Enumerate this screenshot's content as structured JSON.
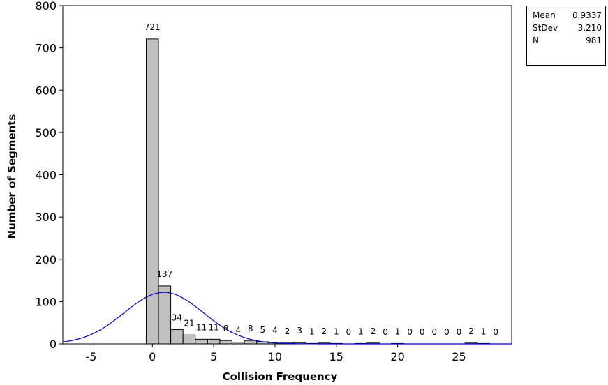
{
  "chart_data": {
    "type": "bar",
    "xlabel": "Collision Frequency",
    "ylabel": "Number of Segments",
    "xlim": [
      -7.3,
      29.3
    ],
    "ylim": [
      0,
      800
    ],
    "x_ticks": [
      -5,
      0,
      5,
      10,
      15,
      20,
      25
    ],
    "y_ticks": [
      0,
      100,
      200,
      300,
      400,
      500,
      600,
      700,
      800
    ],
    "bin_width": 1,
    "bins": [
      0,
      1,
      2,
      3,
      4,
      5,
      6,
      7,
      8,
      9,
      10,
      11,
      12,
      13,
      14,
      15,
      16,
      17,
      18,
      19,
      20,
      21,
      22,
      23,
      24,
      25,
      26,
      27,
      28
    ],
    "values": [
      721,
      137,
      34,
      21,
      11,
      11,
      8,
      4,
      8,
      5,
      4,
      2,
      3,
      1,
      2,
      1,
      0,
      1,
      2,
      0,
      1,
      0,
      0,
      0,
      0,
      0,
      2,
      1,
      0
    ],
    "value_labels": [
      "721",
      "137",
      "34",
      "21",
      "11",
      "11",
      "8",
      "4",
      "8",
      "5",
      "4",
      "2",
      "3",
      "1",
      "2",
      "1",
      "0",
      "1",
      "2",
      "0",
      "1",
      "0",
      "0",
      "0",
      "0",
      "0",
      "2",
      "1",
      "0"
    ],
    "grid": false,
    "bar_color": "#c0c0c0",
    "curve_color": "#0000cc",
    "fit": {
      "type": "normal",
      "mean": 0.9337,
      "stdev": 3.21,
      "n": 981
    }
  },
  "stats": [
    {
      "label": "Mean",
      "value": "0.9337"
    },
    {
      "label": "StDev",
      "value": "3.210"
    },
    {
      "label": "N",
      "value": "981"
    }
  ]
}
